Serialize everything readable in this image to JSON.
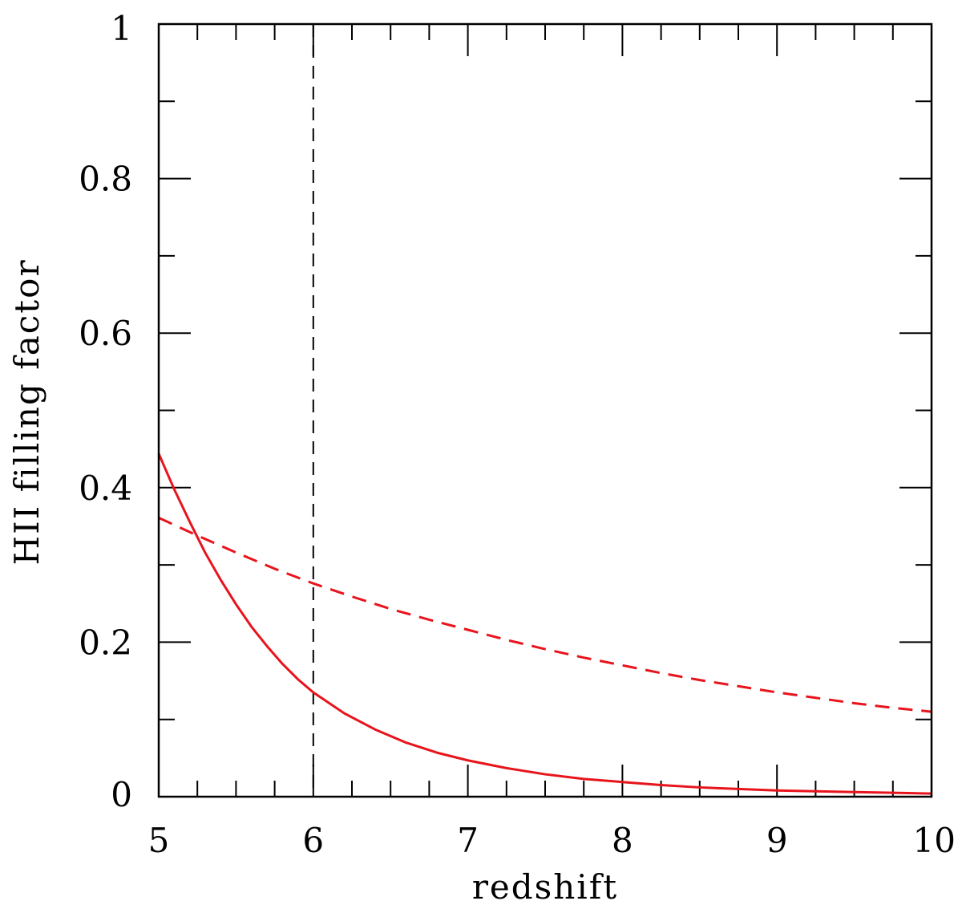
{
  "chart_data": {
    "type": "line",
    "xlabel": "redshift",
    "ylabel": "HII filling factor",
    "xlim": [
      5,
      10
    ],
    "ylim": [
      0,
      1
    ],
    "x_major_ticks": [
      5,
      6,
      7,
      8,
      9,
      10
    ],
    "x_tick_labels": [
      "5",
      "6",
      "7",
      "8",
      "9",
      "10"
    ],
    "x_minor_step": 0.25,
    "y_major_ticks": [
      0,
      0.2,
      0.4,
      0.6,
      0.8,
      1
    ],
    "y_tick_labels": [
      "0",
      "0.2",
      "0.4",
      "0.6",
      "0.8",
      "1"
    ],
    "y_minor_step": 0.1,
    "grid": false,
    "series": [
      {
        "style": "solid",
        "color": "#e8141c",
        "x": [
          5.0,
          5.1,
          5.2,
          5.3,
          5.4,
          5.5,
          5.6,
          5.7,
          5.8,
          5.9,
          6.0,
          6.2,
          6.4,
          6.6,
          6.8,
          7.0,
          7.25,
          7.5,
          7.75,
          8.0,
          8.25,
          8.5,
          8.75,
          9.0,
          9.25,
          9.5,
          9.75,
          10.0
        ],
        "y": [
          0.444,
          0.398,
          0.356,
          0.316,
          0.281,
          0.249,
          0.22,
          0.195,
          0.172,
          0.152,
          0.135,
          0.108,
          0.087,
          0.07,
          0.057,
          0.047,
          0.037,
          0.029,
          0.023,
          0.019,
          0.015,
          0.012,
          0.01,
          0.008,
          0.007,
          0.006,
          0.005,
          0.004
        ]
      },
      {
        "style": "dashed",
        "color": "#e8141c",
        "x": [
          5.0,
          5.25,
          5.5,
          5.75,
          6.0,
          6.25,
          6.5,
          6.75,
          7.0,
          7.25,
          7.5,
          7.75,
          8.0,
          8.25,
          8.5,
          8.75,
          9.0,
          9.25,
          9.5,
          9.75,
          10.0
        ],
        "y": [
          0.361,
          0.338,
          0.316,
          0.295,
          0.276,
          0.259,
          0.243,
          0.229,
          0.216,
          0.203,
          0.191,
          0.18,
          0.17,
          0.16,
          0.151,
          0.143,
          0.135,
          0.128,
          0.121,
          0.115,
          0.11
        ]
      }
    ],
    "vertical_lines": [
      {
        "x": 6,
        "style": "dashed",
        "color": "#000000"
      }
    ]
  }
}
